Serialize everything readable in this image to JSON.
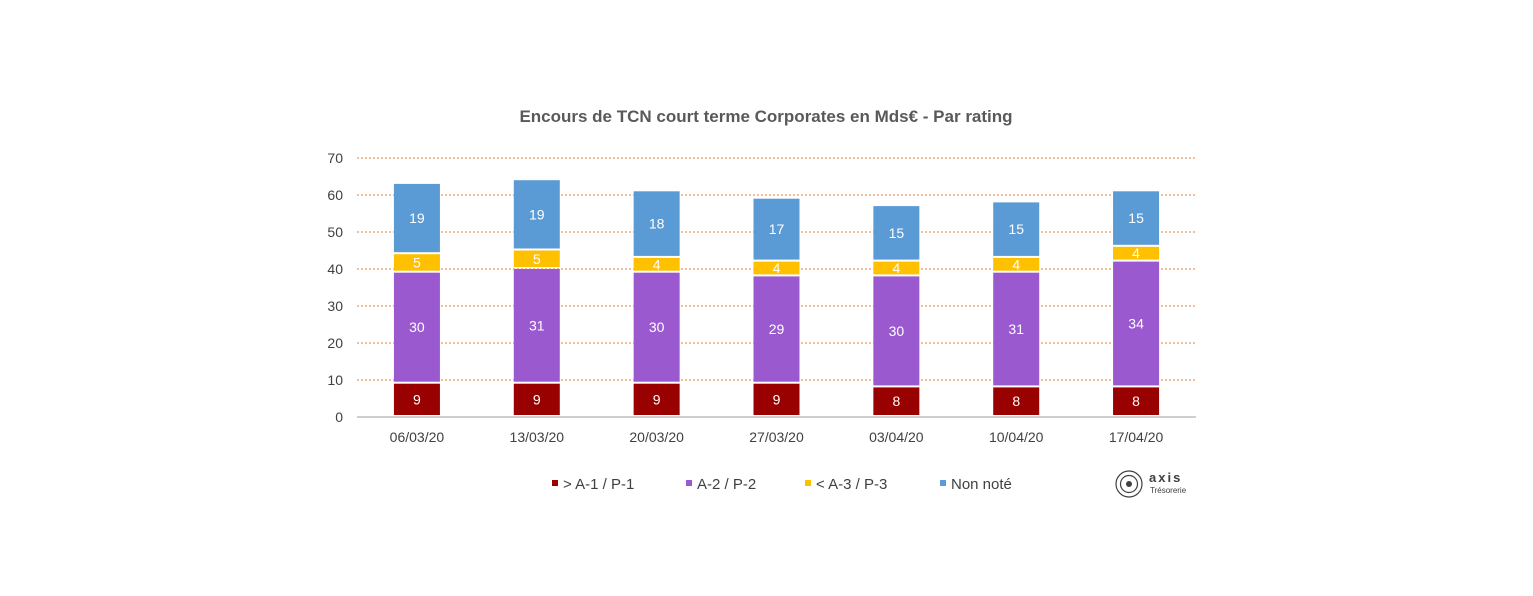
{
  "chart_data": {
    "type": "bar",
    "stacked": true,
    "title": "Encours de TCN court terme Corporates en Mds€ - Par rating",
    "categories": [
      "06/03/20",
      "13/03/20",
      "20/03/20",
      "27/03/20",
      "03/04/20",
      "10/04/20",
      "17/04/20"
    ],
    "series": [
      {
        "name": "> A-1 / P-1",
        "color": "#990000",
        "values": [
          9,
          9,
          9,
          9,
          8,
          8,
          8
        ]
      },
      {
        "name": "A-2 / P-2",
        "color": "#9B59D0",
        "values": [
          30,
          31,
          30,
          29,
          30,
          31,
          34
        ]
      },
      {
        "name": "< A-3 / P-3",
        "color": "#FFC000",
        "values": [
          5,
          5,
          4,
          4,
          4,
          4,
          4
        ]
      },
      {
        "name": "Non noté",
        "color": "#5B9BD5",
        "values": [
          19,
          19,
          18,
          17,
          15,
          15,
          15
        ]
      }
    ],
    "ylim": [
      0,
      70
    ],
    "yticks": [
      0,
      10,
      20,
      30,
      40,
      50,
      60,
      70
    ],
    "grid": true,
    "grid_color": "#ED7D31",
    "legend_position": "bottom"
  },
  "logo": {
    "word": "axis",
    "sub": "Trésorerie"
  }
}
